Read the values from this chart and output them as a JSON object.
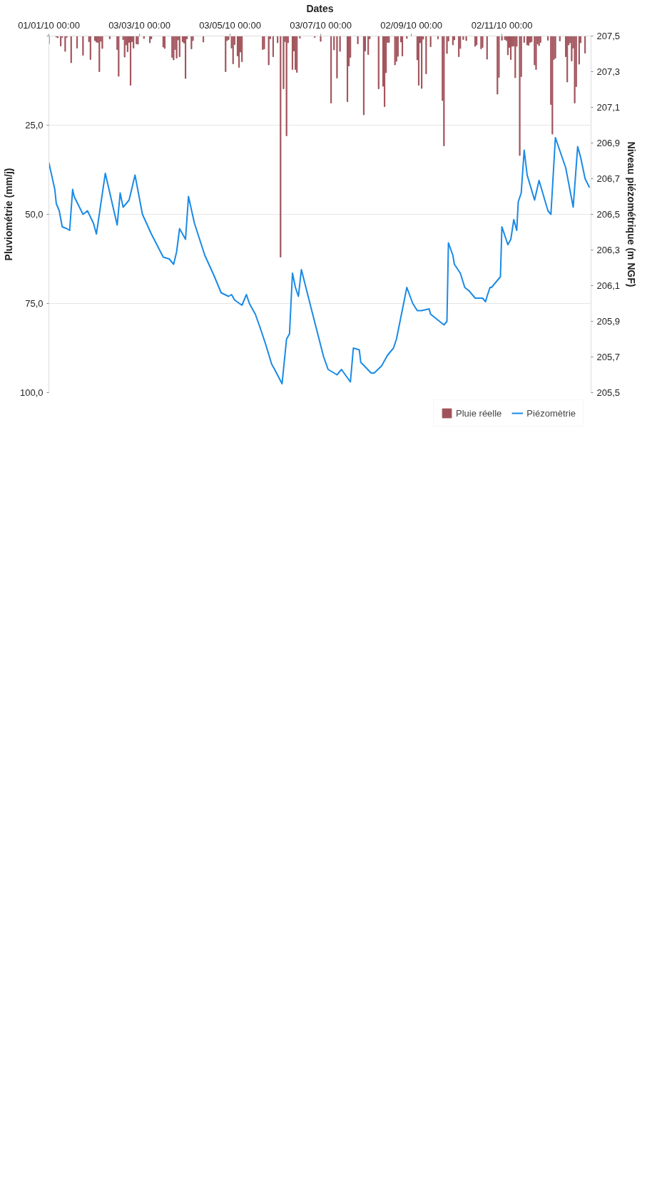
{
  "chart_data": {
    "type": "bar",
    "xlabel": "Dates",
    "ylabel": "Pluviométrie (mm/j)",
    "y2label": "Niveau piézométrique (m NGF)",
    "xlim": [
      "2010-01-01",
      "2011-01-01"
    ],
    "xticks": [
      {
        "value": "2010-01-01",
        "label": "01/01/10 00:00"
      },
      {
        "value": "2010-03-03",
        "label": "03/03/10 00:00"
      },
      {
        "value": "2010-05-03",
        "label": "03/05/10 00:00"
      },
      {
        "value": "2010-07-03",
        "label": "03/07/10 00:00"
      },
      {
        "value": "2010-09-02",
        "label": "02/09/10 00:00"
      },
      {
        "value": "2010-11-02",
        "label": "02/11/10 00:00"
      }
    ],
    "ylim": [
      100,
      0
    ],
    "yticks": [
      {
        "value": 0,
        "label": null
      },
      {
        "value": 25,
        "label": "25,0"
      },
      {
        "value": 50,
        "label": "50,0"
      },
      {
        "value": 75,
        "label": "75,0"
      },
      {
        "value": 100,
        "label": "100,0"
      }
    ],
    "y2lim": [
      205.5,
      207.5
    ],
    "y2ticks": [
      {
        "value": 205.5,
        "label": "205,5"
      },
      {
        "value": 205.7,
        "label": "205,7"
      },
      {
        "value": 205.9,
        "label": "205,9"
      },
      {
        "value": 206.1,
        "label": "206,1"
      },
      {
        "value": 206.3,
        "label": "206,3"
      },
      {
        "value": 206.5,
        "label": "206,5"
      },
      {
        "value": 206.7,
        "label": "206,7"
      },
      {
        "value": 206.9,
        "label": "206,9"
      },
      {
        "value": 207.1,
        "label": "207,1"
      },
      {
        "value": 207.3,
        "label": "207,3"
      },
      {
        "value": 207.5,
        "label": "207,5"
      }
    ],
    "grid": "y",
    "legend": "bottom",
    "series": [
      {
        "name": "Pluie réelle",
        "color": "#a0525a",
        "x": [
          "2010-01-01",
          "2010-01-06",
          "2010-01-07",
          "2010-01-09",
          "2010-01-10",
          "2010-01-12",
          "2010-01-13",
          "2010-01-16",
          "2010-01-20",
          "2010-01-24",
          "2010-01-28",
          "2010-01-29",
          "2010-02-01",
          "2010-02-02",
          "2010-02-03",
          "2010-02-04",
          "2010-02-05",
          "2010-02-06",
          "2010-02-11",
          "2010-02-16",
          "2010-02-17",
          "2010-02-20",
          "2010-02-21",
          "2010-02-22",
          "2010-02-23",
          "2010-02-24",
          "2010-02-25",
          "2010-02-26",
          "2010-02-27",
          "2010-03-01",
          "2010-03-02",
          "2010-03-06",
          "2010-03-10",
          "2010-03-11",
          "2010-03-19",
          "2010-03-20",
          "2010-03-25",
          "2010-03-26",
          "2010-03-27",
          "2010-03-28",
          "2010-03-29",
          "2010-03-30",
          "2010-04-01",
          "2010-04-02",
          "2010-04-03",
          "2010-04-04",
          "2010-04-07",
          "2010-04-08",
          "2010-04-15",
          "2010-04-30",
          "2010-05-01",
          "2010-05-02",
          "2010-05-04",
          "2010-05-05",
          "2010-05-06",
          "2010-05-08",
          "2010-05-09",
          "2010-05-10",
          "2010-05-11",
          "2010-05-25",
          "2010-05-26",
          "2010-05-29",
          "2010-05-30",
          "2010-06-01",
          "2010-06-04",
          "2010-06-06",
          "2010-06-08",
          "2010-06-09",
          "2010-06-10",
          "2010-06-11",
          "2010-06-14",
          "2010-06-15",
          "2010-06-16",
          "2010-06-17",
          "2010-06-19",
          "2010-06-29",
          "2010-07-03",
          "2010-07-10",
          "2010-07-12",
          "2010-07-14",
          "2010-07-16",
          "2010-07-21",
          "2010-07-22",
          "2010-07-23",
          "2010-07-28",
          "2010-08-01",
          "2010-08-02",
          "2010-08-04",
          "2010-08-05",
          "2010-08-11",
          "2010-08-14",
          "2010-08-15",
          "2010-08-16",
          "2010-08-17",
          "2010-08-18",
          "2010-08-22",
          "2010-08-23",
          "2010-08-24",
          "2010-08-26",
          "2010-08-27",
          "2010-08-30",
          "2010-09-06",
          "2010-09-07",
          "2010-09-08",
          "2010-09-09",
          "2010-09-10",
          "2010-09-12",
          "2010-09-15",
          "2010-09-20",
          "2010-09-23",
          "2010-09-24",
          "2010-09-26",
          "2010-09-27",
          "2010-09-30",
          "2010-10-01",
          "2010-10-04",
          "2010-10-05",
          "2010-10-07",
          "2010-10-09",
          "2010-10-15",
          "2010-10-16",
          "2010-10-19",
          "2010-10-20",
          "2010-10-23",
          "2010-10-30",
          "2010-10-31",
          "2010-11-02",
          "2010-11-04",
          "2010-11-05",
          "2010-11-06",
          "2010-11-07",
          "2010-11-08",
          "2010-11-09",
          "2010-11-10",
          "2010-11-11",
          "2010-11-12",
          "2010-11-14",
          "2010-11-15",
          "2010-11-17",
          "2010-11-19",
          "2010-11-20",
          "2010-11-21",
          "2010-11-22",
          "2010-11-24",
          "2010-11-25",
          "2010-11-26",
          "2010-11-27",
          "2010-11-28",
          "2010-12-03",
          "2010-12-05",
          "2010-12-06",
          "2010-12-07",
          "2010-12-08",
          "2010-12-11",
          "2010-12-15",
          "2010-12-16",
          "2010-12-17",
          "2010-12-18",
          "2010-12-19",
          "2010-12-20",
          "2010-12-21",
          "2010-12-22",
          "2010-12-24",
          "2010-12-25",
          "2010-12-28"
        ],
        "values": [
          2.2,
          0.3,
          0.5,
          2.8,
          0.4,
          4.3,
          0.4,
          7.5,
          3.4,
          5.4,
          1.6,
          6.6,
          1.3,
          1.7,
          1.8,
          10.0,
          1.5,
          3.5,
          0.8,
          3.8,
          11.3,
          1.0,
          5.9,
          2.5,
          4.4,
          1.8,
          13.8,
          1.6,
          3.4,
          2.2,
          2.3,
          0.7,
          1.9,
          0.8,
          3.1,
          3.5,
          6.0,
          6.7,
          3.8,
          6.2,
          1.1,
          5.8,
          1.6,
          2.0,
          11.9,
          0.8,
          3.6,
          1.3,
          1.7,
          10.0,
          1.3,
          1.0,
          3.4,
          7.8,
          2.4,
          5.6,
          8.8,
          4.5,
          7.2,
          3.8,
          3.6,
          8.1,
          0.8,
          5.8,
          1.9,
          62,
          14.8,
          1.6,
          28,
          1.9,
          9.4,
          4.2,
          9.4,
          10.2,
          0.6,
          0.4,
          1.5,
          18.8,
          3.9,
          11.8,
          4.3,
          18.4,
          8.4,
          6.0,
          2.2,
          22.1,
          4.2,
          5.2,
          0.8,
          14.8,
          14.1,
          19.8,
          10.3,
          1.8,
          1.8,
          8.1,
          7.1,
          5.7,
          1.7,
          5.6,
          0.7,
          6.7,
          13.8,
          1.9,
          14.7,
          0.9,
          10.6,
          3.0,
          0.8,
          18.1,
          30.8,
          4.9,
          1.4,
          2.5,
          1.1,
          5.8,
          3.5,
          1.0,
          1.3,
          2.9,
          2.5,
          3.6,
          3.2,
          6.5,
          16.3,
          11.6,
          1.2,
          1.0,
          1.3,
          5.3,
          3.2,
          6.6,
          2.9,
          2.8,
          11.7,
          2.9,
          33.5,
          11.4,
          1.8,
          2.5,
          2.6,
          1.8,
          1.6,
          8.1,
          9.4,
          2.2,
          2.7,
          1.8,
          1.2,
          19.2,
          27.5,
          6.6,
          6.2,
          1.4,
          5.8,
          12.9,
          2.5,
          1.9,
          7.0,
          3.4,
          18.8,
          14.2,
          7.9,
          1.9,
          4.8
        ]
      },
      {
        "name": "Piézomètrie",
        "type": "line",
        "axis": "y2",
        "color": "#1a8ae6",
        "x": [
          "2010-01-01",
          "2010-01-05",
          "2010-01-06",
          "2010-01-08",
          "2010-01-10",
          "2010-01-13",
          "2010-01-15",
          "2010-01-17",
          "2010-01-18",
          "2010-01-24",
          "2010-01-27",
          "2010-01-31",
          "2010-02-02",
          "2010-02-08",
          "2010-02-16",
          "2010-02-18",
          "2010-02-20",
          "2010-02-24",
          "2010-02-28",
          "2010-03-05",
          "2010-03-11",
          "2010-03-19",
          "2010-03-23",
          "2010-03-26",
          "2010-03-28",
          "2010-03-30",
          "2010-04-03",
          "2010-04-05",
          "2010-04-09",
          "2010-04-16",
          "2010-04-22",
          "2010-04-24",
          "2010-04-27",
          "2010-05-02",
          "2010-05-04",
          "2010-05-06",
          "2010-05-11",
          "2010-05-14",
          "2010-05-16",
          "2010-05-20",
          "2010-05-23",
          "2010-05-27",
          "2010-05-31",
          "2010-06-02",
          "2010-06-07",
          "2010-06-10",
          "2010-06-12",
          "2010-06-14",
          "2010-06-16",
          "2010-06-18",
          "2010-06-20",
          "2010-06-27",
          "2010-07-05",
          "2010-07-08",
          "2010-07-14",
          "2010-07-17",
          "2010-07-23",
          "2010-07-25",
          "2010-07-29",
          "2010-07-30",
          "2010-08-06",
          "2010-08-08",
          "2010-08-13",
          "2010-08-17",
          "2010-08-21",
          "2010-08-23",
          "2010-08-30",
          "2010-09-03",
          "2010-09-06",
          "2010-09-09",
          "2010-09-14",
          "2010-09-15",
          "2010-09-21",
          "2010-09-24",
          "2010-09-26",
          "2010-09-27",
          "2010-09-30",
          "2010-10-01",
          "2010-10-05",
          "2010-10-08",
          "2010-10-11",
          "2010-10-15",
          "2010-10-20",
          "2010-10-22",
          "2010-10-23",
          "2010-10-25",
          "2010-10-26",
          "2010-11-01",
          "2010-11-02",
          "2010-11-06",
          "2010-11-08",
          "2010-11-10",
          "2010-11-12",
          "2010-11-13",
          "2010-11-15",
          "2010-11-17",
          "2010-11-19",
          "2010-11-24",
          "2010-11-27",
          "2010-12-03",
          "2010-12-05",
          "2010-12-08",
          "2010-12-15",
          "2010-12-20",
          "2010-12-23",
          "2010-12-25",
          "2010-12-28",
          "2010-12-31"
        ],
        "values": [
          206.79,
          206.64,
          206.56,
          206.52,
          206.43,
          206.42,
          206.41,
          206.64,
          206.6,
          206.5,
          206.52,
          206.45,
          206.39,
          206.73,
          206.44,
          206.62,
          206.54,
          206.58,
          206.72,
          206.5,
          206.39,
          206.26,
          206.25,
          206.22,
          206.29,
          206.42,
          206.36,
          206.6,
          206.45,
          206.27,
          206.16,
          206.12,
          206.06,
          206.04,
          206.05,
          206.02,
          205.99,
          206.05,
          206.0,
          205.94,
          205.87,
          205.77,
          205.66,
          205.63,
          205.55,
          205.8,
          205.83,
          206.17,
          206.09,
          206.04,
          206.19,
          205.96,
          205.7,
          205.63,
          205.6,
          205.63,
          205.56,
          205.75,
          205.74,
          205.67,
          205.61,
          205.61,
          205.65,
          205.71,
          205.75,
          205.8,
          206.09,
          206.0,
          205.96,
          205.96,
          205.97,
          205.94,
          205.9,
          205.88,
          205.9,
          206.34,
          206.27,
          206.22,
          206.17,
          206.09,
          206.07,
          206.03,
          206.03,
          206.01,
          206.04,
          206.09,
          206.09,
          206.15,
          206.43,
          206.33,
          206.36,
          206.47,
          206.41,
          206.57,
          206.62,
          206.86,
          206.72,
          206.58,
          206.69,
          206.52,
          206.5,
          206.93,
          206.76,
          206.54,
          206.88,
          206.82,
          206.7,
          206.65
        ]
      }
    ]
  }
}
